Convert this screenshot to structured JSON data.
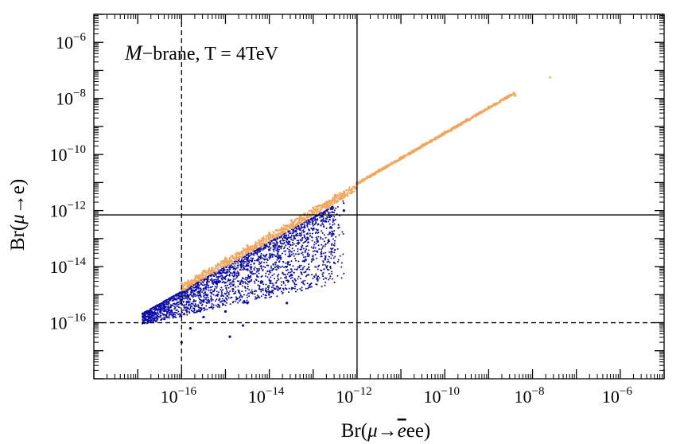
{
  "chart_data": {
    "type": "scatter",
    "title": "",
    "annotation": {
      "script_symbol": "M",
      "text": "−brane, T = 4TeV"
    },
    "xlabel": {
      "prefix": "Br(",
      "mu": "μ",
      "arrow": "→",
      "ebar": "e",
      "suffix": "ee)"
    },
    "ylabel": {
      "prefix": "Br(",
      "mu": "μ",
      "arrow": "→",
      "suffix": "e)"
    },
    "x_scale": "log",
    "y_scale": "log",
    "xlim": [
      1e-18,
      1e-05
    ],
    "ylim": [
      1e-18,
      1e-05
    ],
    "x_ticks": [
      {
        "value": 1e-16,
        "base": "10",
        "exp": "−16"
      },
      {
        "value": 1e-14,
        "base": "10",
        "exp": "−14"
      },
      {
        "value": 1e-12,
        "base": "10",
        "exp": "−12"
      },
      {
        "value": 1e-10,
        "base": "10",
        "exp": "−10"
      },
      {
        "value": 1e-08,
        "base": "10",
        "exp": "−8"
      },
      {
        "value": 1e-06,
        "base": "10",
        "exp": "−6"
      }
    ],
    "y_ticks": [
      {
        "value": 1e-16,
        "base": "10",
        "exp": "−16"
      },
      {
        "value": 1e-14,
        "base": "10",
        "exp": "−14"
      },
      {
        "value": 1e-12,
        "base": "10",
        "exp": "−12"
      },
      {
        "value": 1e-10,
        "base": "10",
        "exp": "−10"
      },
      {
        "value": 1e-08,
        "base": "10",
        "exp": "−8"
      },
      {
        "value": 1e-06,
        "base": "10",
        "exp": "−6"
      }
    ],
    "reference_lines": [
      {
        "orientation": "vertical",
        "value": 1e-16,
        "style": "dashed"
      },
      {
        "orientation": "vertical",
        "value": 1e-12,
        "style": "solid"
      },
      {
        "orientation": "horizontal",
        "value": 7e-13,
        "style": "solid"
      },
      {
        "orientation": "horizontal",
        "value": 1e-16,
        "style": "dashed"
      }
    ],
    "series": [
      {
        "color": "#0a0aa8",
        "description_points_log10": [
          [
            -16.8,
            -15.9
          ],
          [
            -16.4,
            -15.5
          ],
          [
            -16.0,
            -15.2
          ],
          [
            -15.6,
            -14.9
          ],
          [
            -15.2,
            -14.6
          ],
          [
            -14.8,
            -14.2
          ],
          [
            -14.4,
            -13.8
          ],
          [
            -14.0,
            -13.4
          ],
          [
            -13.6,
            -13.0
          ],
          [
            -13.2,
            -12.6
          ],
          [
            -12.8,
            -12.2
          ],
          [
            -15.0,
            -15.6
          ],
          [
            -14.5,
            -15.3
          ],
          [
            -14.0,
            -14.9
          ],
          [
            -13.5,
            -14.3
          ],
          [
            -13.2,
            -13.8
          ],
          [
            -12.9,
            -13.1
          ],
          [
            -15.5,
            -15.8
          ],
          [
            -14.6,
            -16.1
          ],
          [
            -15.8,
            -16.2
          ],
          [
            -13.6,
            -15.3
          ],
          [
            -14.9,
            -16.5
          ],
          [
            -12.6,
            -12.6
          ],
          [
            -12.3,
            -12.0
          ],
          [
            -16.0,
            -16.7
          ]
        ]
      },
      {
        "color": "#f4a55a",
        "description_points_log10": [
          [
            -16.0,
            -14.6
          ],
          [
            -15.5,
            -14.15
          ],
          [
            -15.0,
            -13.7
          ],
          [
            -14.5,
            -13.25
          ],
          [
            -14.0,
            -12.8
          ],
          [
            -13.5,
            -12.35
          ],
          [
            -13.0,
            -11.9
          ],
          [
            -12.5,
            -11.45
          ],
          [
            -12.0,
            -11.0
          ],
          [
            -11.5,
            -10.55
          ],
          [
            -11.0,
            -10.1
          ],
          [
            -10.5,
            -9.65
          ],
          [
            -10.0,
            -9.2
          ],
          [
            -9.5,
            -8.75
          ],
          [
            -9.0,
            -8.3
          ],
          [
            -8.4,
            -7.9
          ]
        ]
      }
    ]
  }
}
